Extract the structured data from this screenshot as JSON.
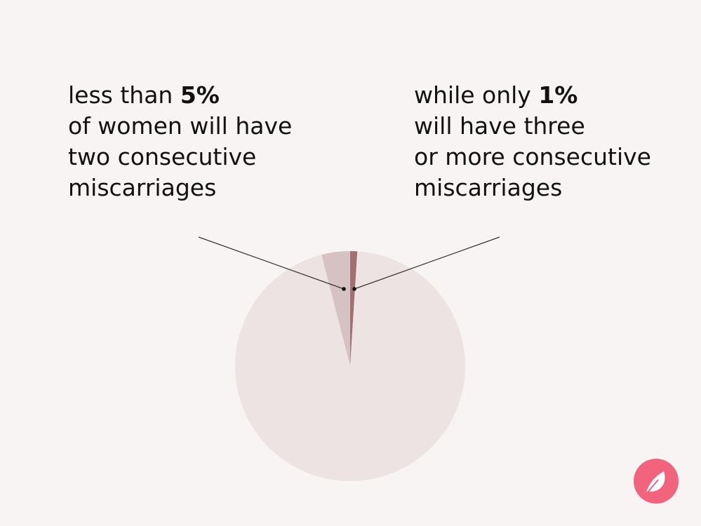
{
  "chart_data": {
    "type": "pie",
    "values": [
      1,
      95,
      4
    ],
    "colors": [
      "#a1706f",
      "#ece3e2",
      "#d6c2c2"
    ],
    "annotations": [
      {
        "prefix": "less than ",
        "emphasis": "5%",
        "lines": [
          "of women will have",
          "two consecutive",
          "miscarriages"
        ]
      },
      {
        "prefix": "while only ",
        "emphasis": "1%",
        "lines": [
          "will have three",
          "or more consecutive",
          "miscarriages"
        ]
      }
    ]
  }
}
